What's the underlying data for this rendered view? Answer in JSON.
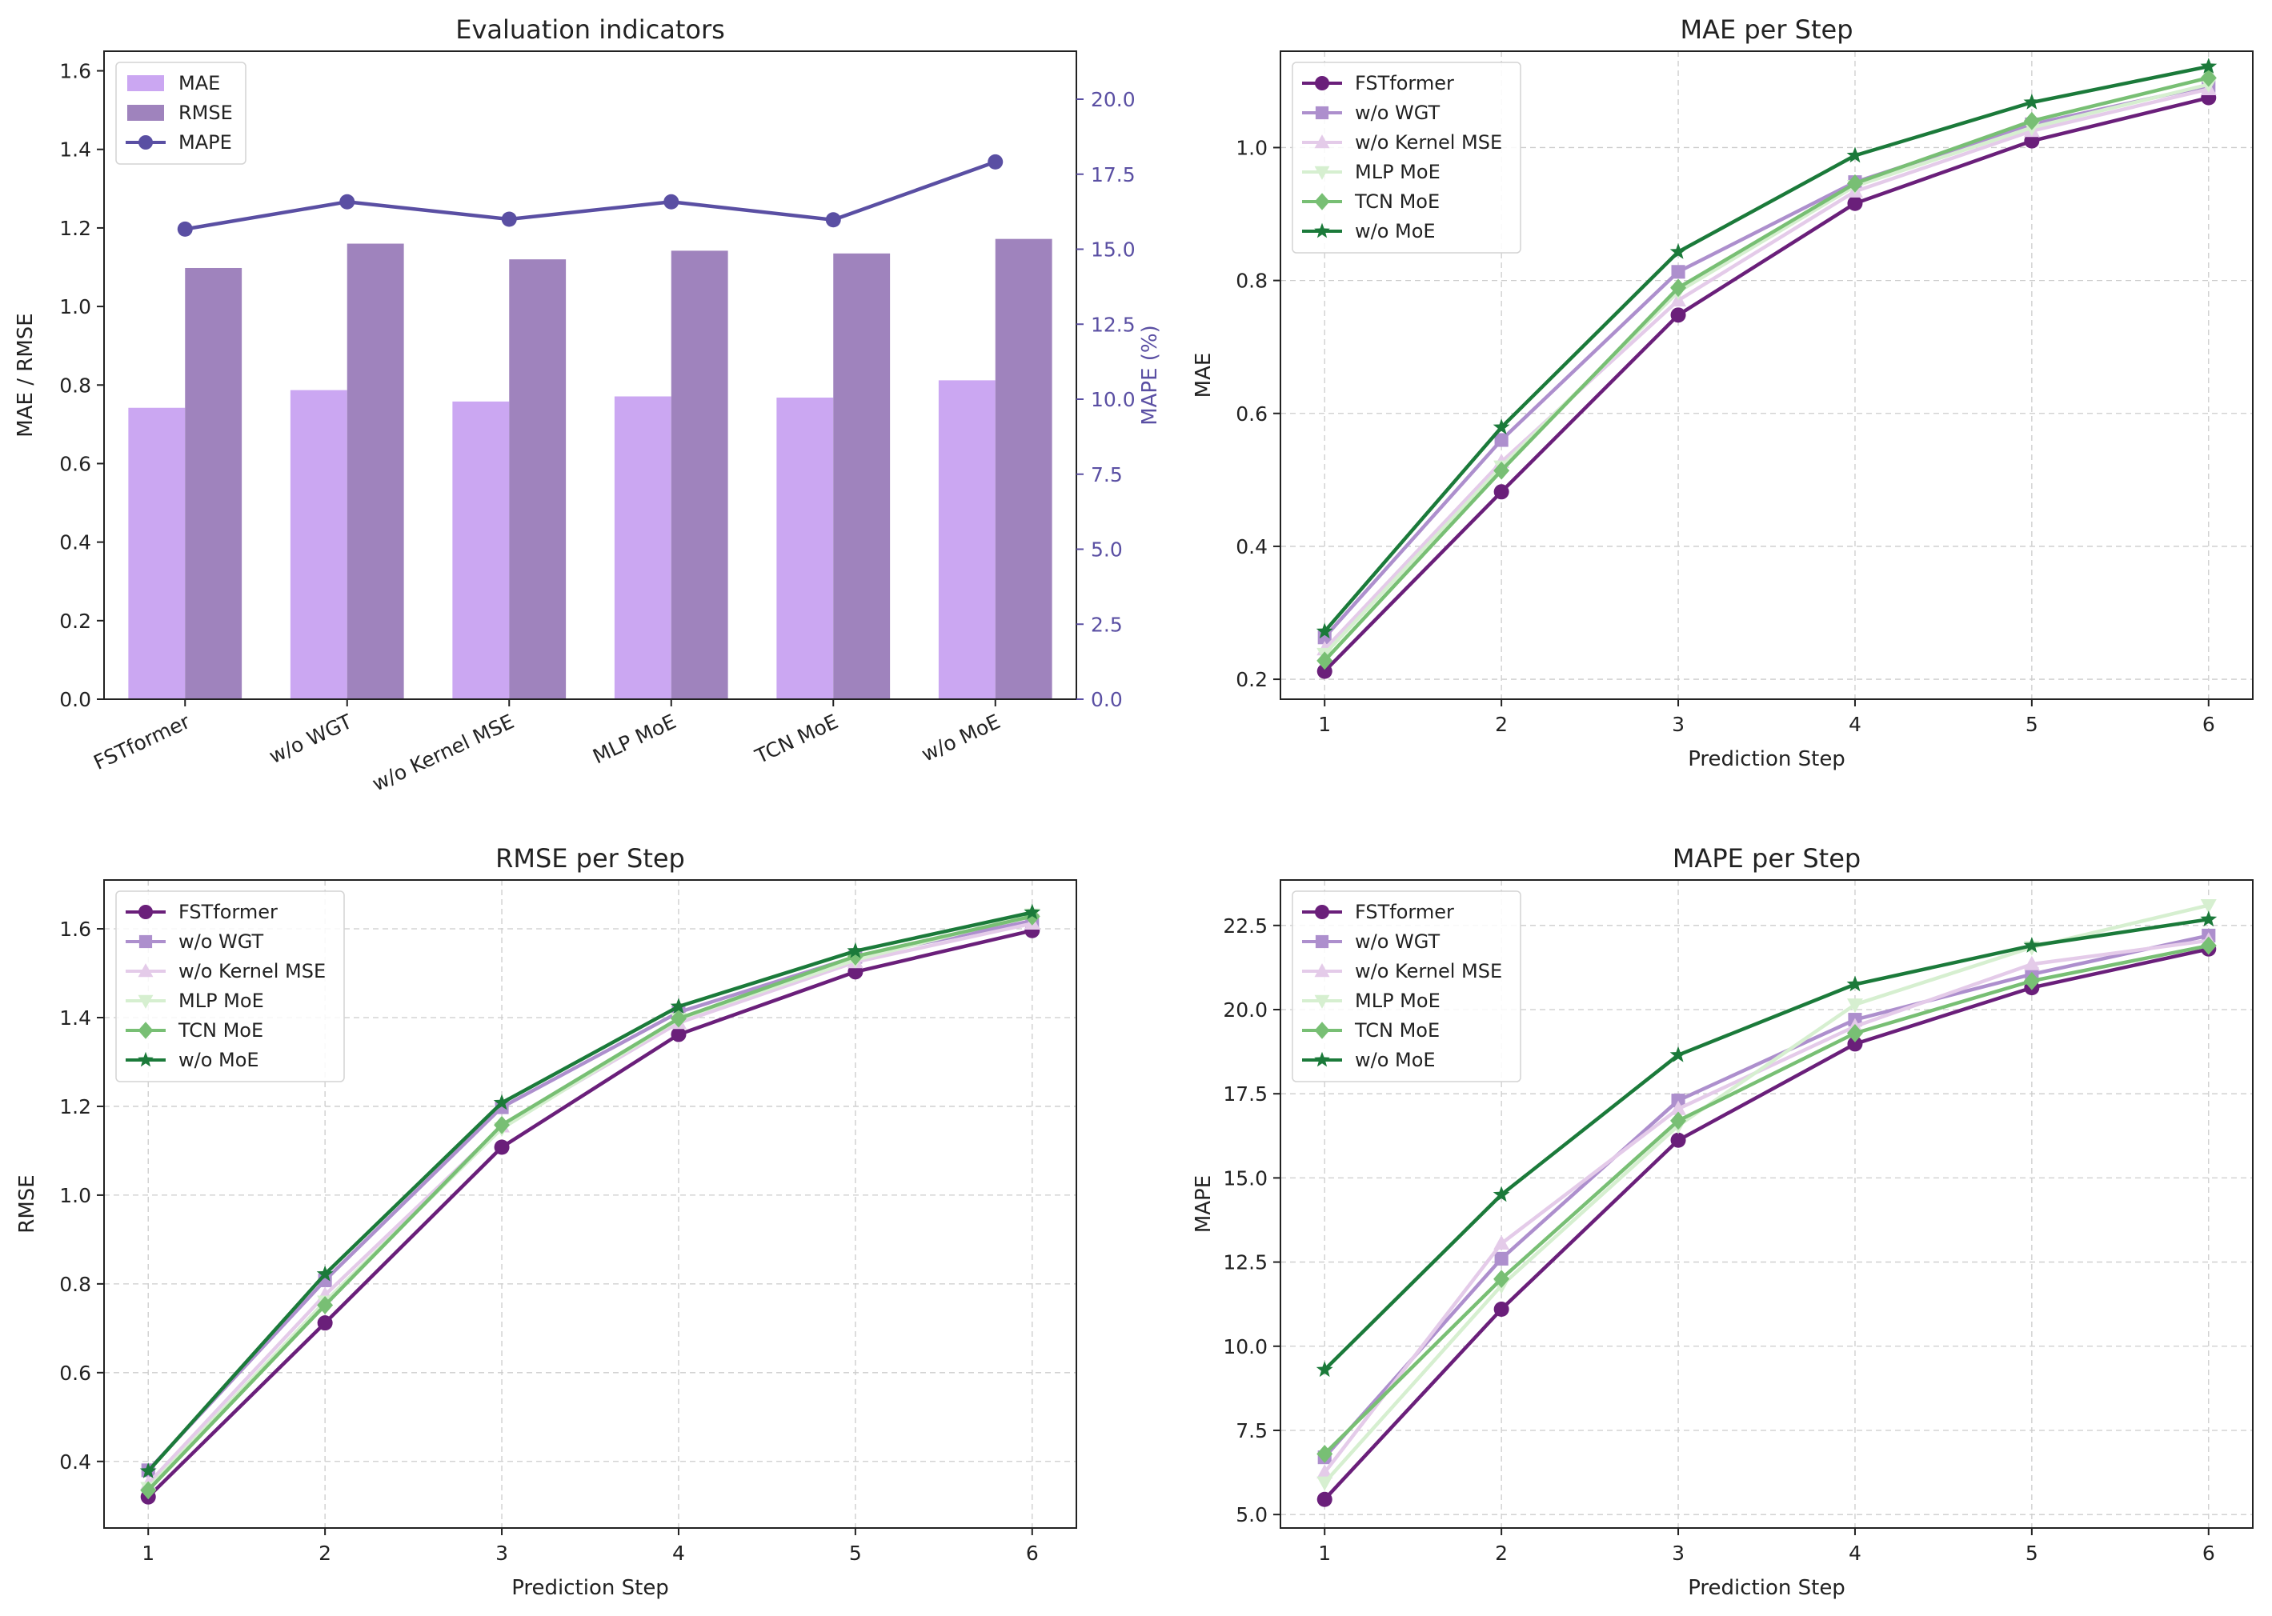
{
  "chart_data": [
    {
      "id": "bar",
      "type": "bar",
      "title": "Evaluation indicators",
      "categories": [
        "FSTformer",
        "w/o WGT",
        "w/o Kernel MSE",
        "MLP MoE",
        "TCN MoE",
        "w/o MoE"
      ],
      "ylabel": "MAE / RMSE",
      "y2label": "MAPE (%)",
      "ylim": [
        0,
        1.65
      ],
      "y2lim": [
        0,
        21.6
      ],
      "yticks": [
        "0.0",
        "0.2",
        "0.4",
        "0.6",
        "0.8",
        "1.0",
        "1.2",
        "1.4",
        "1.6"
      ],
      "y2ticks": [
        "0.0",
        "2.5",
        "5.0",
        "7.5",
        "10.0",
        "12.5",
        "15.0",
        "17.5",
        "20.0"
      ],
      "legend_position": "upper-left",
      "series": [
        {
          "name": "MAE",
          "kind": "bar",
          "color": "#cba7f2",
          "values": [
            0.742,
            0.787,
            0.758,
            0.771,
            0.768,
            0.812
          ]
        },
        {
          "name": "RMSE",
          "kind": "bar",
          "color": "#9f83bd",
          "values": [
            1.098,
            1.16,
            1.12,
            1.142,
            1.135,
            1.172
          ]
        },
        {
          "name": "MAPE",
          "kind": "line",
          "axis": "right",
          "color": "#5a4fa3",
          "values": [
            15.67,
            16.58,
            16.0,
            16.58,
            15.98,
            17.91
          ]
        }
      ]
    },
    {
      "id": "mae",
      "type": "line",
      "title": "MAE per Step",
      "xlabel": "Prediction Step",
      "ylabel": "MAE",
      "x": [
        1,
        2,
        3,
        4,
        5,
        6
      ],
      "xticks": [
        "1",
        "2",
        "3",
        "4",
        "5",
        "6"
      ],
      "ylim": [
        0.17,
        1.145
      ],
      "yticks": [
        "0.2",
        "0.4",
        "0.6",
        "0.8",
        "1.0"
      ],
      "grid": true,
      "legend_position": "upper-left",
      "series": [
        {
          "name": "FSTformer",
          "marker": "circle",
          "color": "#6a1f7a",
          "values": [
            0.212,
            0.482,
            0.748,
            0.916,
            1.01,
            1.075
          ]
        },
        {
          "name": "w/o WGT",
          "marker": "square",
          "color": "#ad8fcd",
          "values": [
            0.263,
            0.56,
            0.813,
            0.948,
            1.035,
            1.093
          ]
        },
        {
          "name": "w/o Kernel MSE",
          "marker": "triangle-up",
          "color": "#e4cbe9",
          "values": [
            0.245,
            0.527,
            0.77,
            0.934,
            1.025,
            1.088
          ]
        },
        {
          "name": "MLP MoE",
          "marker": "triangle-down",
          "color": "#d6efd0",
          "values": [
            0.238,
            0.52,
            0.783,
            0.942,
            1.03,
            1.095
          ]
        },
        {
          "name": "TCN MoE",
          "marker": "diamond",
          "color": "#78bf74",
          "values": [
            0.228,
            0.514,
            0.789,
            0.946,
            1.04,
            1.105
          ]
        },
        {
          "name": "w/o MoE",
          "marker": "star",
          "color": "#1b7a3a",
          "values": [
            0.272,
            0.579,
            0.843,
            0.988,
            1.068,
            1.122
          ]
        }
      ]
    },
    {
      "id": "rmse",
      "type": "line",
      "title": "RMSE per Step",
      "xlabel": "Prediction Step",
      "ylabel": "RMSE",
      "x": [
        1,
        2,
        3,
        4,
        5,
        6
      ],
      "xticks": [
        "1",
        "2",
        "3",
        "4",
        "5",
        "6"
      ],
      "ylim": [
        0.25,
        1.71
      ],
      "yticks": [
        "0.4",
        "0.6",
        "0.8",
        "1.0",
        "1.2",
        "1.4",
        "1.6"
      ],
      "grid": true,
      "legend_position": "upper-left",
      "series": [
        {
          "name": "FSTformer",
          "marker": "circle",
          "color": "#6a1f7a",
          "values": [
            0.32,
            0.712,
            1.108,
            1.362,
            1.503,
            1.596
          ]
        },
        {
          "name": "w/o WGT",
          "marker": "square",
          "color": "#ad8fcd",
          "values": [
            0.38,
            0.808,
            1.198,
            1.412,
            1.537,
            1.618
          ]
        },
        {
          "name": "w/o Kernel MSE",
          "marker": "triangle-up",
          "color": "#e4cbe9",
          "values": [
            0.35,
            0.775,
            1.155,
            1.388,
            1.525,
            1.612
          ]
        },
        {
          "name": "MLP MoE",
          "marker": "triangle-down",
          "color": "#d6efd0",
          "values": [
            0.34,
            0.76,
            1.15,
            1.397,
            1.53,
            1.632
          ]
        },
        {
          "name": "TCN MoE",
          "marker": "diamond",
          "color": "#78bf74",
          "values": [
            0.335,
            0.752,
            1.158,
            1.398,
            1.538,
            1.628
          ]
        },
        {
          "name": "w/o MoE",
          "marker": "star",
          "color": "#1b7a3a",
          "values": [
            0.378,
            0.822,
            1.208,
            1.425,
            1.55,
            1.637
          ]
        }
      ]
    },
    {
      "id": "mape",
      "type": "line",
      "title": "MAPE per Step",
      "xlabel": "Prediction Step",
      "ylabel": "MAPE",
      "x": [
        1,
        2,
        3,
        4,
        5,
        6
      ],
      "xticks": [
        "1",
        "2",
        "3",
        "4",
        "5",
        "6"
      ],
      "ylim": [
        4.6,
        23.85
      ],
      "yticks": [
        "5.0",
        "7.5",
        "10.0",
        "12.5",
        "15.0",
        "17.5",
        "20.0",
        "22.5"
      ],
      "grid": true,
      "legend_position": "upper-left",
      "series": [
        {
          "name": "FSTformer",
          "marker": "circle",
          "color": "#6a1f7a",
          "values": [
            5.45,
            11.1,
            16.12,
            18.98,
            20.65,
            21.8
          ]
        },
        {
          "name": "w/o WGT",
          "marker": "square",
          "color": "#ad8fcd",
          "values": [
            6.7,
            12.6,
            17.3,
            19.7,
            21.05,
            22.2
          ]
        },
        {
          "name": "w/o Kernel MSE",
          "marker": "triangle-up",
          "color": "#e4cbe9",
          "values": [
            6.25,
            13.05,
            17.05,
            19.5,
            21.35,
            22.05
          ]
        },
        {
          "name": "MLP MoE",
          "marker": "triangle-down",
          "color": "#d6efd0",
          "values": [
            5.95,
            11.8,
            16.55,
            20.15,
            21.85,
            23.1
          ]
        },
        {
          "name": "TCN MoE",
          "marker": "diamond",
          "color": "#78bf74",
          "values": [
            6.8,
            12.0,
            16.7,
            19.3,
            20.85,
            21.9
          ]
        },
        {
          "name": "w/o MoE",
          "marker": "star",
          "color": "#1b7a3a",
          "values": [
            9.3,
            14.5,
            18.65,
            20.75,
            21.9,
            22.68
          ]
        }
      ]
    }
  ]
}
